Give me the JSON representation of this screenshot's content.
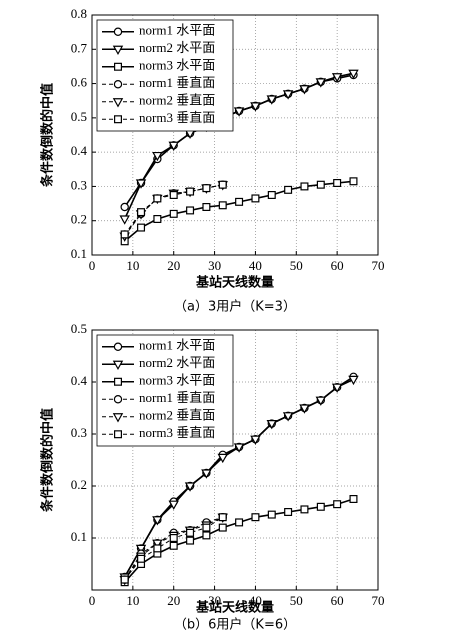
{
  "chart_data": [
    {
      "type": "line",
      "caption": "（a）3用户（K=3）",
      "x_label": "基站天线数量",
      "y_label": "条件数倒数的中值",
      "xlim": [
        0,
        70
      ],
      "xticks": [
        0,
        10,
        20,
        30,
        40,
        50,
        60,
        70
      ],
      "ylim": [
        0.1,
        0.8
      ],
      "yticks": [
        0.1,
        0.2,
        0.3,
        0.4,
        0.5,
        0.6,
        0.7,
        0.8
      ],
      "grid": true,
      "legend": "upper left",
      "series": [
        {
          "name": "norm1 水平面",
          "color": "#000000",
          "marker": "circle",
          "linestyle": "solid",
          "x": [
            8,
            12,
            16,
            20,
            24,
            28,
            32,
            36,
            40,
            44,
            48,
            52,
            56,
            60,
            64
          ],
          "values": [
            0.24,
            0.31,
            0.38,
            0.42,
            0.455,
            0.475,
            0.5,
            0.52,
            0.535,
            0.555,
            0.57,
            0.585,
            0.605,
            0.615,
            0.625
          ]
        },
        {
          "name": "norm2 水平面",
          "color": "#000000",
          "marker": "triangle",
          "linestyle": "solid",
          "x": [
            8,
            12,
            16,
            20,
            24,
            28,
            32,
            36,
            40,
            44,
            48,
            52,
            56,
            60,
            64
          ],
          "values": [
            0.205,
            0.31,
            0.39,
            0.42,
            0.455,
            0.475,
            0.5,
            0.52,
            0.535,
            0.555,
            0.57,
            0.585,
            0.605,
            0.62,
            0.63
          ]
        },
        {
          "name": "norm3 水平面",
          "color": "#000000",
          "marker": "square",
          "linestyle": "solid",
          "x": [
            8,
            12,
            16,
            20,
            24,
            28,
            32,
            36,
            40,
            44,
            48,
            52,
            56,
            60,
            64
          ],
          "values": [
            0.14,
            0.18,
            0.205,
            0.22,
            0.23,
            0.24,
            0.245,
            0.255,
            0.265,
            0.275,
            0.29,
            0.3,
            0.305,
            0.31,
            0.315
          ]
        },
        {
          "name": "norm1 垂直面",
          "color": "#000000",
          "marker": "circle",
          "linestyle": "dashed",
          "x": [
            8,
            12,
            16,
            20,
            24,
            28,
            32
          ],
          "values": [
            0.16,
            0.22,
            0.265,
            0.28,
            0.285,
            0.295,
            0.305
          ]
        },
        {
          "name": "norm2 垂直面",
          "color": "#000000",
          "marker": "triangle",
          "linestyle": "dashed",
          "x": [
            8,
            12,
            16,
            20,
            24,
            28,
            32
          ],
          "values": [
            0.155,
            0.22,
            0.265,
            0.28,
            0.285,
            0.295,
            0.305
          ]
        },
        {
          "name": "norm3 垂直面",
          "color": "#000000",
          "marker": "square",
          "linestyle": "dashed",
          "x": [
            8,
            12,
            16,
            20,
            24,
            28,
            32
          ],
          "values": [
            0.16,
            0.225,
            0.265,
            0.275,
            0.285,
            0.295,
            0.305
          ]
        }
      ]
    },
    {
      "type": "line",
      "caption": "（b）6用户（K=6）",
      "x_label": "基站天线数量",
      "y_label": "条件数倒数的中值",
      "xlim": [
        0,
        70
      ],
      "xticks": [
        0,
        10,
        20,
        30,
        40,
        50,
        60,
        70
      ],
      "ylim": [
        0,
        0.5
      ],
      "yticks": [
        0.1,
        0.2,
        0.3,
        0.4,
        0.5
      ],
      "grid": true,
      "legend": "upper left",
      "series": [
        {
          "name": "norm1 水平面",
          "color": "#000000",
          "marker": "circle",
          "linestyle": "solid",
          "x": [
            8,
            12,
            16,
            20,
            24,
            28,
            32,
            36,
            40,
            44,
            48,
            52,
            56,
            60,
            64
          ],
          "values": [
            0.025,
            0.08,
            0.135,
            0.17,
            0.2,
            0.225,
            0.26,
            0.275,
            0.29,
            0.32,
            0.335,
            0.35,
            0.365,
            0.39,
            0.41
          ]
        },
        {
          "name": "norm2 水平面",
          "color": "#000000",
          "marker": "triangle",
          "linestyle": "solid",
          "x": [
            8,
            12,
            16,
            20,
            24,
            28,
            32,
            36,
            40,
            44,
            48,
            52,
            56,
            60,
            64
          ],
          "values": [
            0.025,
            0.08,
            0.135,
            0.165,
            0.2,
            0.225,
            0.255,
            0.275,
            0.29,
            0.32,
            0.335,
            0.35,
            0.365,
            0.39,
            0.405
          ]
        },
        {
          "name": "norm3 水平面",
          "color": "#000000",
          "marker": "square",
          "linestyle": "solid",
          "x": [
            8,
            12,
            16,
            20,
            24,
            28,
            32,
            36,
            40,
            44,
            48,
            52,
            56,
            60,
            64
          ],
          "values": [
            0.015,
            0.05,
            0.07,
            0.085,
            0.095,
            0.105,
            0.12,
            0.13,
            0.14,
            0.145,
            0.15,
            0.155,
            0.16,
            0.165,
            0.175
          ]
        },
        {
          "name": "norm1 垂直面",
          "color": "#000000",
          "marker": "circle",
          "linestyle": "dashed",
          "x": [
            8,
            12,
            16,
            20,
            24,
            28,
            32
          ],
          "values": [
            0.02,
            0.07,
            0.09,
            0.11,
            0.115,
            0.13,
            0.14
          ]
        },
        {
          "name": "norm2 垂直面",
          "color": "#000000",
          "marker": "triangle",
          "linestyle": "dashed",
          "x": [
            8,
            12,
            16,
            20,
            24,
            28,
            32
          ],
          "values": [
            0.02,
            0.065,
            0.09,
            0.105,
            0.115,
            0.125,
            0.14
          ]
        },
        {
          "name": "norm3 垂直面",
          "color": "#000000",
          "marker": "square",
          "linestyle": "dashed",
          "x": [
            8,
            12,
            16,
            20,
            24,
            28,
            32
          ],
          "values": [
            0.02,
            0.06,
            0.08,
            0.1,
            0.11,
            0.12,
            0.14
          ]
        }
      ]
    }
  ]
}
